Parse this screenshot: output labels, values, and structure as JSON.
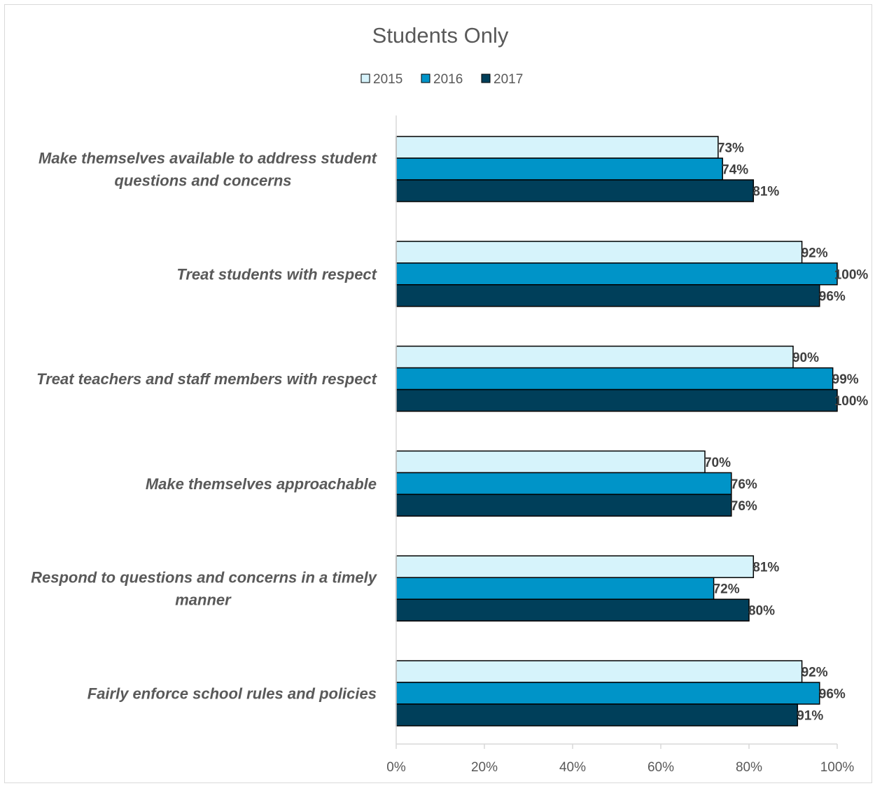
{
  "chart_data": {
    "type": "bar",
    "orientation": "horizontal",
    "title": "Students Only",
    "categories": [
      [
        "Make themselves available to address student",
        "questions and concerns"
      ],
      [
        "Treat students with respect"
      ],
      [
        "Treat teachers and staff members with respect"
      ],
      [
        "Make themselves approachable"
      ],
      [
        "Respond to questions and concerns in a timely",
        "manner"
      ],
      [
        "Fairly enforce school rules and policies"
      ]
    ],
    "series": [
      {
        "name": "2015",
        "color": "#d6f3fb",
        "values": [
          73,
          92,
          90,
          70,
          81,
          92
        ],
        "labels": [
          "73%",
          "92%",
          "90%",
          "70%",
          "81%",
          "92%"
        ]
      },
      {
        "name": "2016",
        "color": "#0094c8",
        "values": [
          74,
          100,
          99,
          76,
          72,
          96
        ],
        "labels": [
          "74%",
          "100%",
          "99%",
          "76%",
          "72%",
          "96%"
        ]
      },
      {
        "name": "2017",
        "color": "#003f5a",
        "values": [
          81,
          96,
          100,
          76,
          80,
          91
        ],
        "labels": [
          "81%",
          "96%",
          "100%",
          "76%",
          "80%",
          "91%"
        ]
      }
    ],
    "xlim": [
      0,
      100
    ],
    "xticks": [
      "0%",
      "20%",
      "40%",
      "60%",
      "80%",
      "100%"
    ],
    "grid": false,
    "legend_position": "top"
  }
}
